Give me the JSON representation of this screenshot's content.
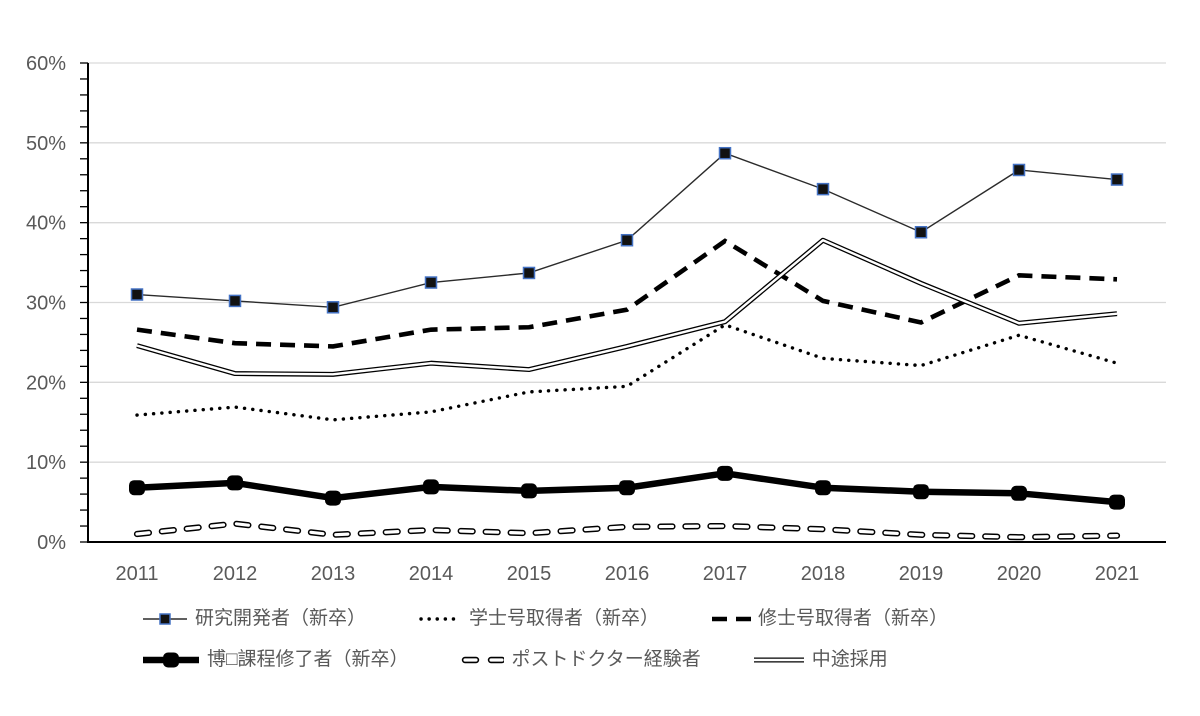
{
  "chart_data": {
    "type": "line",
    "title": "",
    "xlabel": "",
    "ylabel": "",
    "categories": [
      "2011",
      "2012",
      "2013",
      "2014",
      "2015",
      "2016",
      "2017",
      "2018",
      "2019",
      "2020",
      "2021"
    ],
    "series": [
      {
        "name": "研究開発者（新卒）",
        "style": "thin-square-marker",
        "values": [
          31.0,
          30.2,
          29.4,
          32.5,
          33.7,
          37.8,
          48.7,
          44.2,
          38.8,
          46.6,
          45.4
        ]
      },
      {
        "name": "学士号取得者（新卒）",
        "style": "dotted",
        "values": [
          15.9,
          16.9,
          15.3,
          16.3,
          18.8,
          19.5,
          27.2,
          23.0,
          22.1,
          25.9,
          22.4
        ]
      },
      {
        "name": "修士号取得者（新卒）",
        "style": "dashed-thick",
        "values": [
          26.6,
          24.9,
          24.5,
          26.6,
          26.9,
          29.1,
          37.7,
          30.2,
          27.5,
          33.4,
          32.9
        ]
      },
      {
        "name": "博□課程修了者（新卒）",
        "style": "thick-square-marker",
        "values": [
          6.8,
          7.4,
          5.5,
          6.9,
          6.4,
          6.8,
          8.6,
          6.8,
          6.3,
          6.1,
          5.0
        ]
      },
      {
        "name": "ポストドクター経験者",
        "style": "hollow-dash",
        "values": [
          1.0,
          2.3,
          0.9,
          1.5,
          1.1,
          1.9,
          2.0,
          1.6,
          0.9,
          0.6,
          0.8
        ]
      },
      {
        "name": "中途採用",
        "style": "double-line",
        "values": [
          24.6,
          21.1,
          21.0,
          22.4,
          21.6,
          24.5,
          27.6,
          37.8,
          32.4,
          27.4,
          28.6
        ]
      }
    ],
    "ylim": [
      0,
      60
    ],
    "ytick_step": 10,
    "ytick_labels": [
      "0%",
      "10%",
      "20%",
      "30%",
      "40%",
      "50%",
      "60%"
    ],
    "minor_ytick_step": 2,
    "grid": "horizontal",
    "legend_position": "bottom"
  },
  "colors": {
    "line_black": "#000000",
    "thin_line": "#2b2b2b",
    "marker_outline_blue": "#4472c4",
    "gridline": "#d9d9d9",
    "axis": "#000000",
    "tick_label": "#595959",
    "legend_text": "#595959",
    "background": "#ffffff"
  }
}
